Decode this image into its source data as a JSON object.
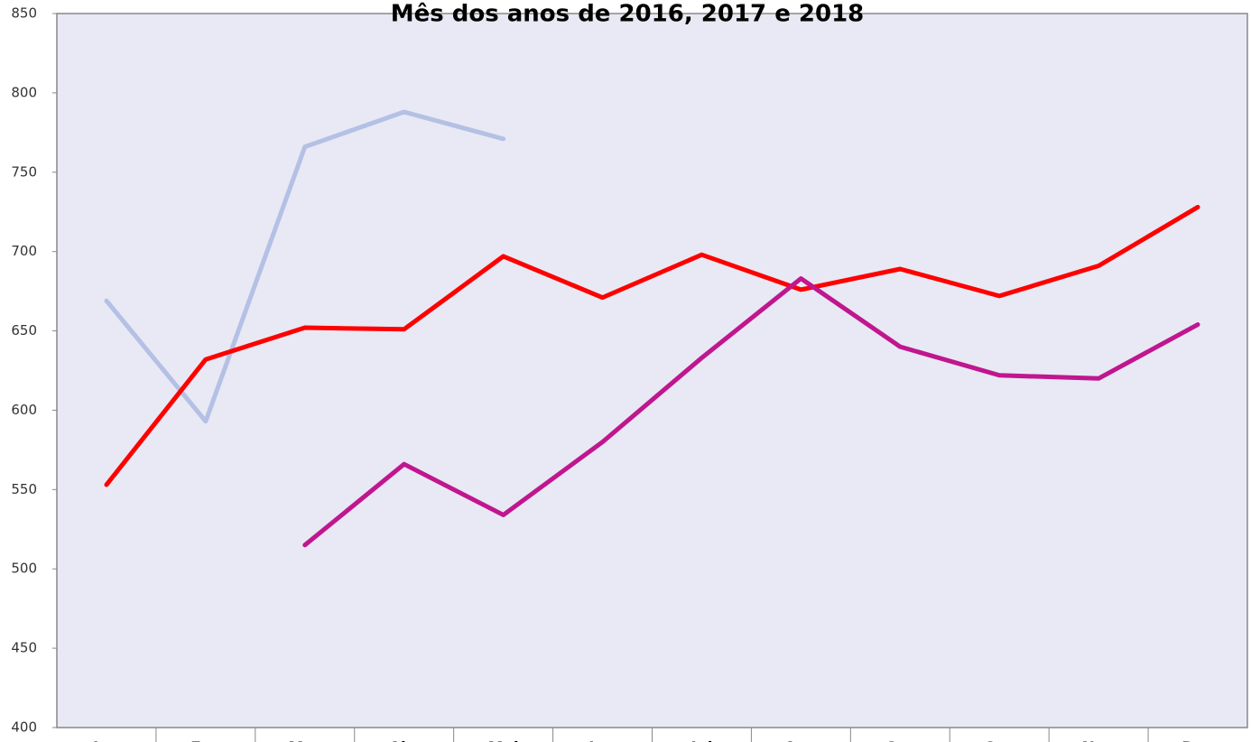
{
  "chart_data": {
    "type": "line",
    "title": "Mês dos anos de  2016, 2017 e 2018",
    "categories": [
      "Jan",
      "Fev",
      "Mar",
      "Abr",
      "Mai",
      "Jun",
      "Jul",
      "Ago",
      "Set",
      "Out",
      "Nov",
      "Dez"
    ],
    "series": [
      {
        "color": "#b4c0e4",
        "values": [
          669,
          593,
          766,
          788,
          771,
          null,
          null,
          null,
          null,
          null,
          null,
          null
        ]
      },
      {
        "color": "#ff0000",
        "values": [
          553,
          632,
          652,
          651,
          697,
          671,
          698,
          676,
          689,
          672,
          691,
          728
        ]
      },
      {
        "color": "#c0168f",
        "values": [
          null,
          null,
          515,
          566,
          534,
          580,
          633,
          683,
          640,
          622,
          620,
          654
        ]
      }
    ],
    "ylim": [
      400,
      850
    ],
    "yticks": [
      400,
      450,
      500,
      550,
      600,
      650,
      700,
      750,
      800,
      850
    ],
    "grid": false
  }
}
